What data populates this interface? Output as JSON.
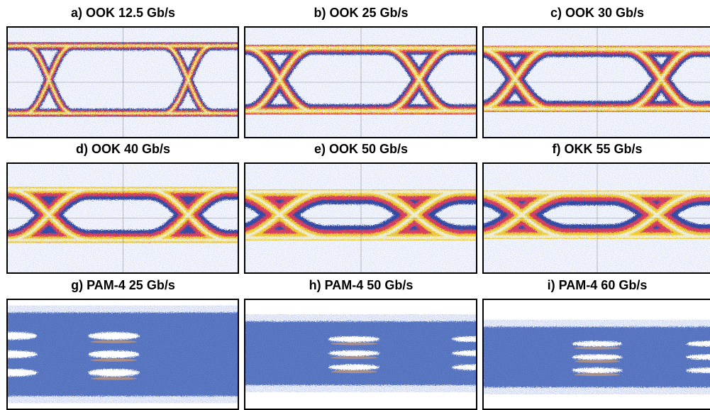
{
  "panels": [
    {
      "title": "a) OOK 12.5 Gb/s"
    },
    {
      "title": "b) OOK 25 Gb/s"
    },
    {
      "title": "c) OOK 30 Gb/s"
    },
    {
      "title": "d) OOK 40 Gb/s"
    },
    {
      "title": "e) OOK 50 Gb/s"
    },
    {
      "title": "f) OKK 55 Gb/s"
    },
    {
      "title": "g) PAM-4 25 Gb/s"
    },
    {
      "title": "h) PAM-4 50 Gb/s"
    },
    {
      "title": "i) PAM-4 60 Gb/s"
    }
  ]
}
